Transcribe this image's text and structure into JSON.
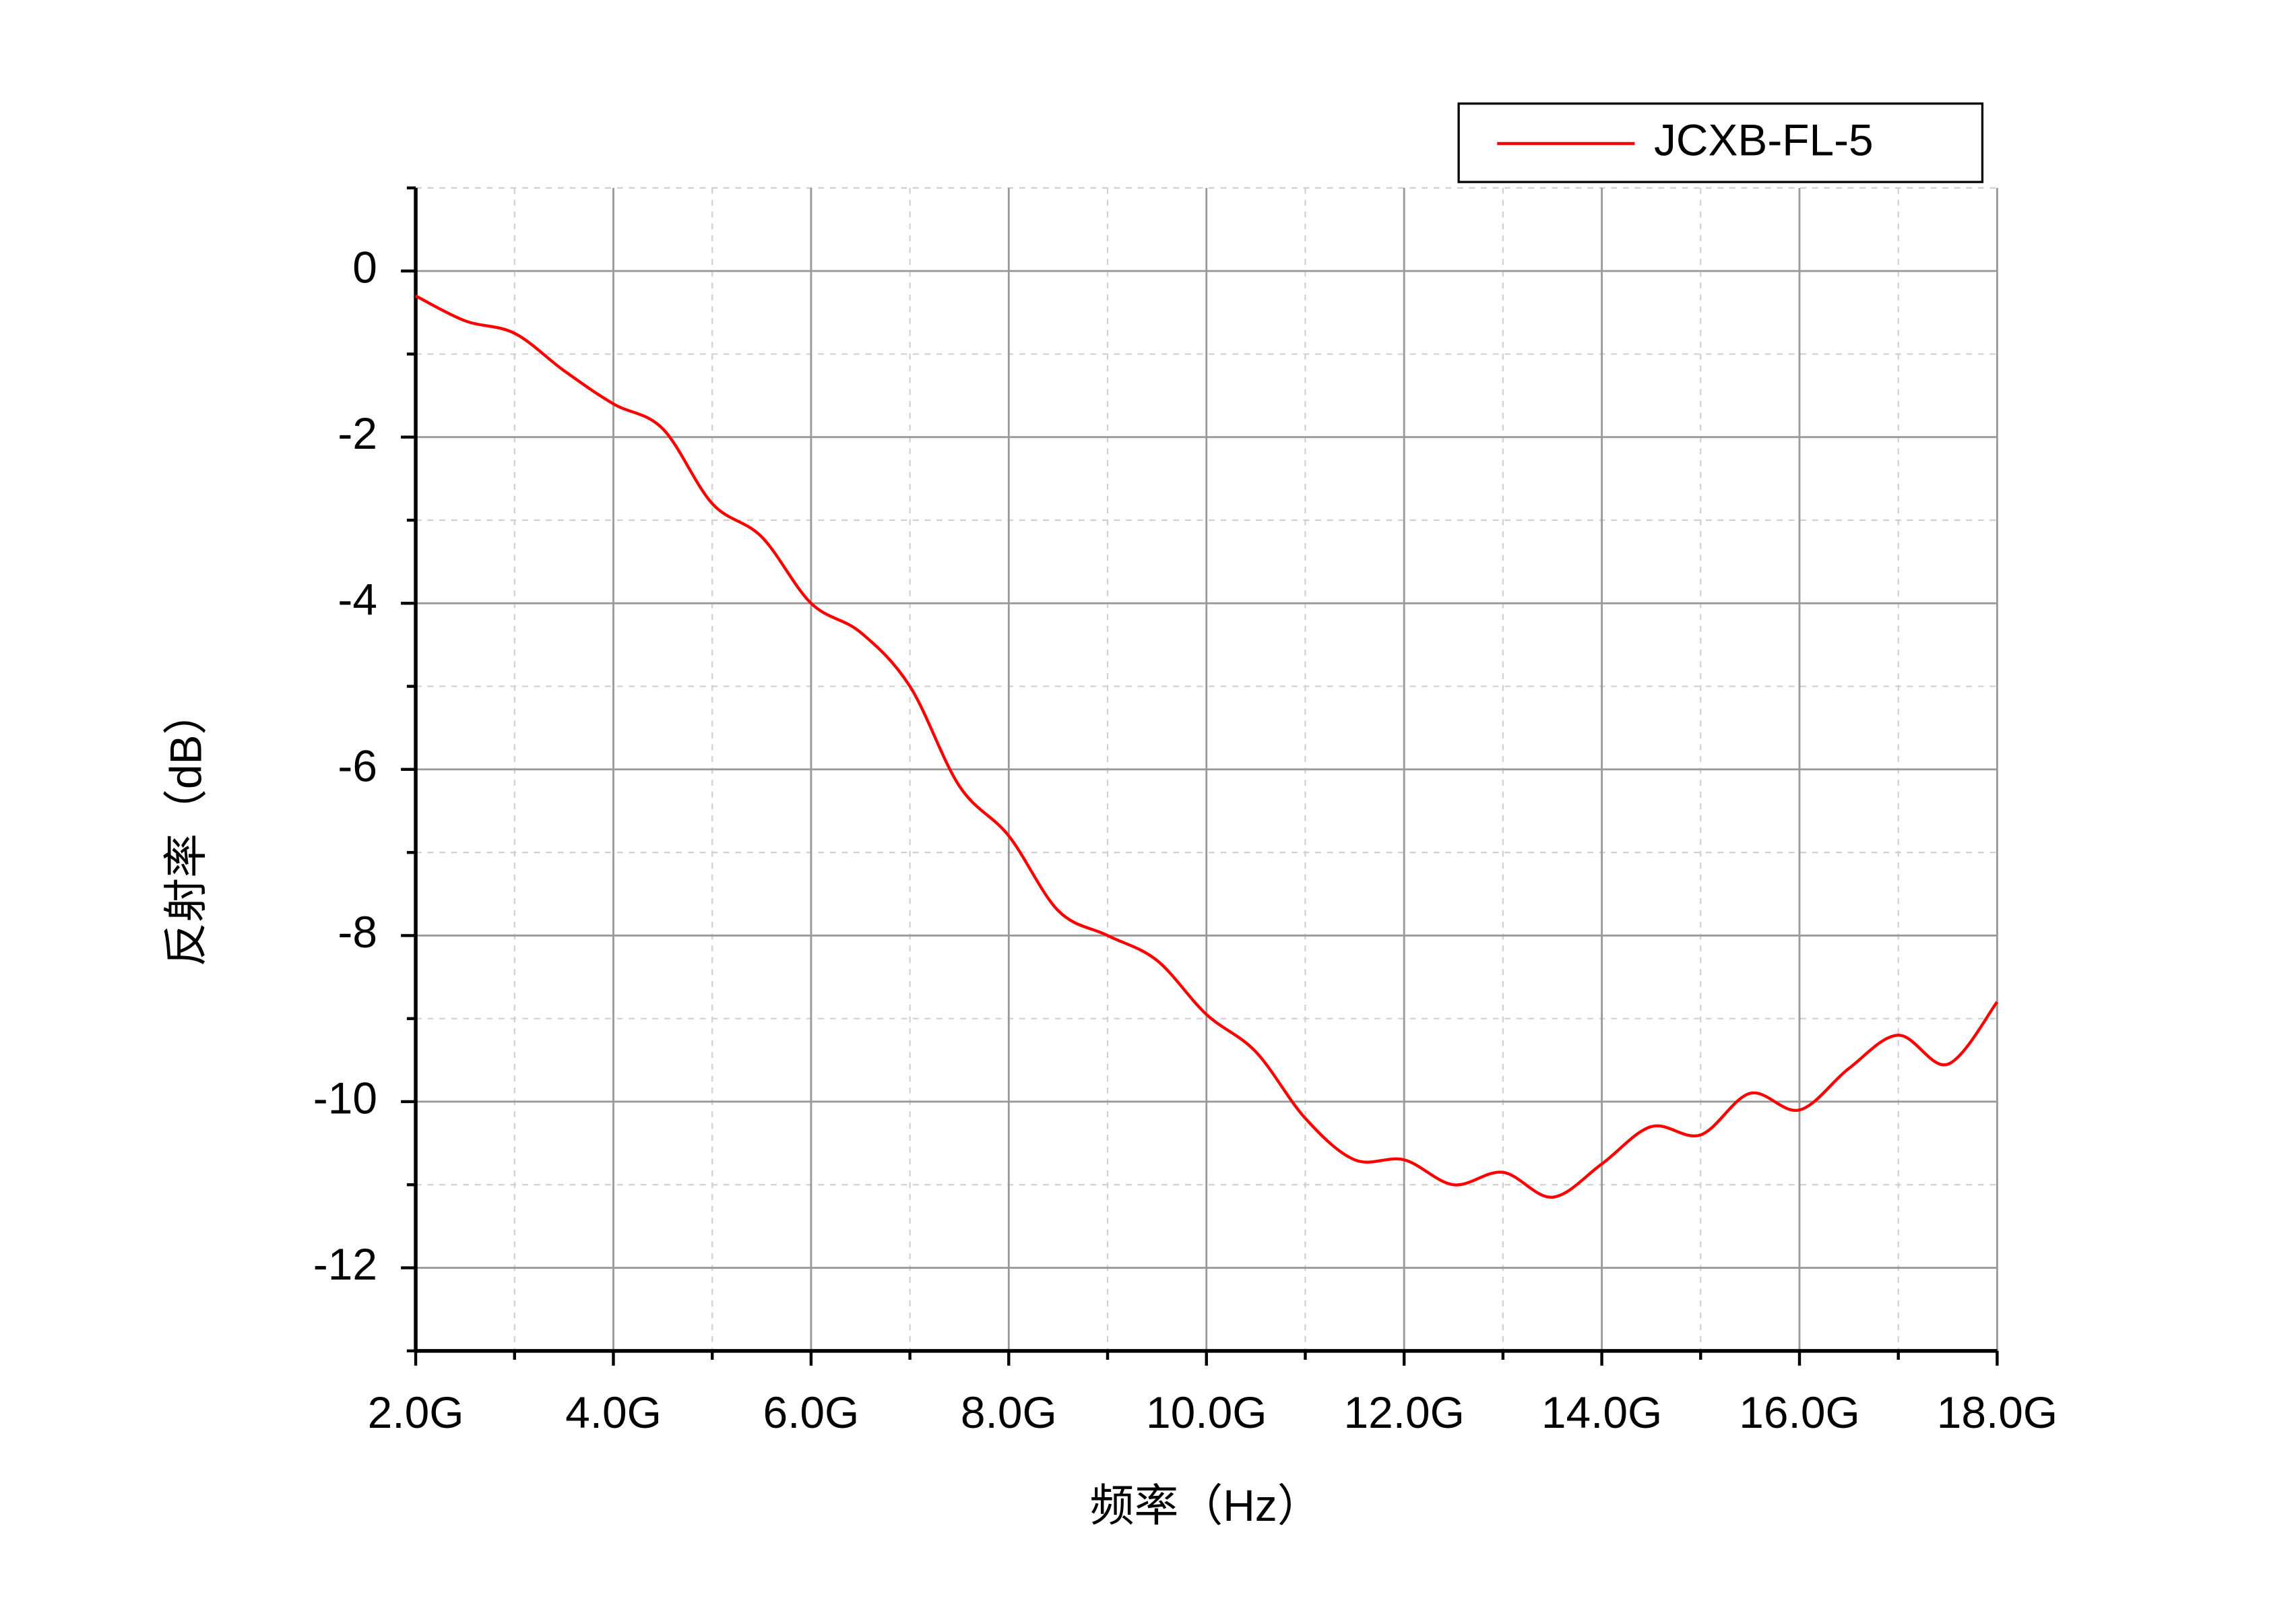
{
  "chart_data": {
    "type": "line",
    "x_label": "频率（Hz）",
    "y_label": "反射率（dB）",
    "x": [
      2,
      2.5,
      3,
      3.5,
      4,
      4.5,
      5,
      5.5,
      6,
      6.5,
      7,
      7.5,
      8,
      8.5,
      9,
      9.5,
      10,
      10.5,
      11,
      11.5,
      12,
      12.5,
      13,
      13.5,
      14,
      14.5,
      15,
      15.5,
      16,
      16.5,
      17,
      17.5,
      18
    ],
    "series": [
      {
        "name": "JCXB-FL-5",
        "color": "#ff0000",
        "values": [
          -0.3,
          -0.6,
          -0.75,
          -1.2,
          -1.6,
          -1.9,
          -2.8,
          -3.2,
          -4.0,
          -4.35,
          -5.0,
          -6.2,
          -6.8,
          -7.7,
          -8.0,
          -8.3,
          -8.95,
          -9.4,
          -10.2,
          -10.7,
          -10.7,
          -11.0,
          -10.85,
          -11.15,
          -10.75,
          -10.3,
          -10.4,
          -9.9,
          -10.1,
          -9.6,
          -9.2,
          -9.55,
          -8.8
        ]
      }
    ],
    "xlim": [
      2,
      18
    ],
    "xticks": [
      {
        "value": 2,
        "label": "2.0G"
      },
      {
        "value": 4,
        "label": "4.0G"
      },
      {
        "value": 6,
        "label": "6.0G"
      },
      {
        "value": 8,
        "label": "8.0G"
      },
      {
        "value": 10,
        "label": "10.0G"
      },
      {
        "value": 12,
        "label": "12.0G"
      },
      {
        "value": 14,
        "label": "14.0G"
      },
      {
        "value": 16,
        "label": "16.0G"
      },
      {
        "value": 18,
        "label": "18.0G"
      }
    ],
    "xticks_minor": [
      3,
      5,
      7,
      9,
      11,
      13,
      15,
      17
    ],
    "ylim": [
      -13,
      1
    ],
    "yticks": [
      0,
      -2,
      -4,
      -6,
      -8,
      -10,
      -12
    ],
    "yticks_minor": [
      1,
      -1,
      -3,
      -5,
      -7,
      -9,
      -11,
      -13
    ],
    "grid": true,
    "legend": "top-right"
  }
}
